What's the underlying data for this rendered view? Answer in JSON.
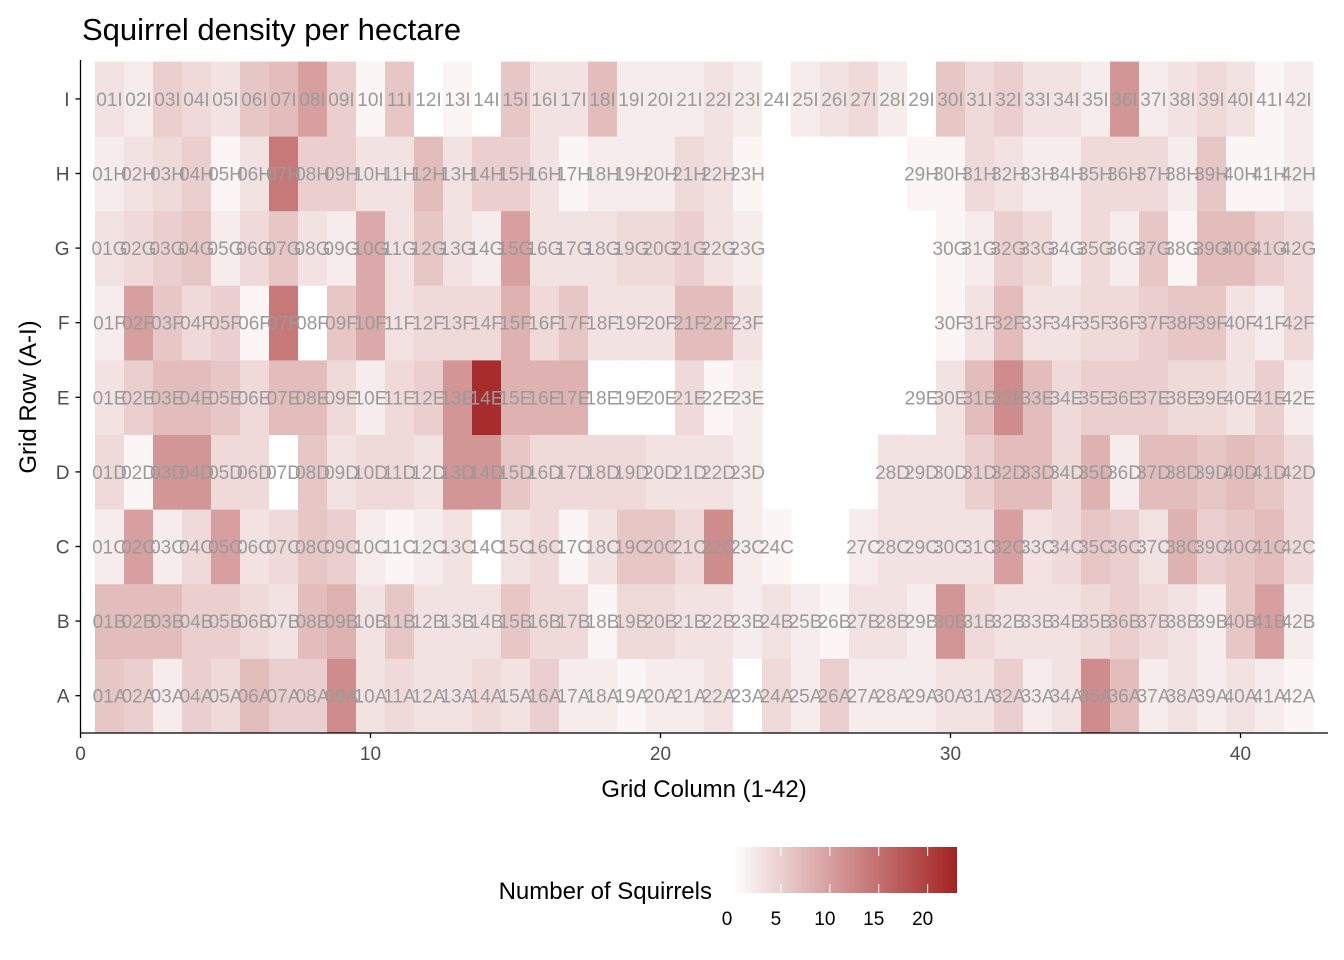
{
  "chart_data": {
    "type": "heatmap",
    "title": "Squirrel density per hectare",
    "xlabel": "Grid Column (1-42)",
    "ylabel": "Grid Row (A-I)",
    "x_ticks": [
      0,
      10,
      20,
      30,
      40
    ],
    "xlim": [
      0,
      42.5
    ],
    "rows": [
      "A",
      "B",
      "C",
      "D",
      "E",
      "F",
      "G",
      "H",
      "I"
    ],
    "columns": [
      1,
      2,
      3,
      4,
      5,
      6,
      7,
      8,
      9,
      10,
      11,
      12,
      13,
      14,
      15,
      16,
      17,
      18,
      19,
      20,
      21,
      22,
      23,
      24,
      25,
      26,
      27,
      28,
      29,
      30,
      31,
      32,
      33,
      34,
      35,
      36,
      37,
      38,
      39,
      40,
      41,
      42
    ],
    "values": {
      "A": [
        6,
        5,
        2,
        5,
        4,
        7,
        5,
        5,
        12,
        3,
        4,
        3,
        3,
        4,
        3,
        5,
        2,
        2,
        1,
        2,
        2,
        3,
        0,
        4,
        2,
        5,
        2,
        2,
        2,
        3,
        3,
        5,
        2,
        3,
        12,
        7,
        2,
        3,
        2,
        3,
        2,
        1
      ],
      "B": [
        7,
        7,
        7,
        5,
        5,
        4,
        3,
        7,
        8,
        3,
        6,
        3,
        3,
        3,
        6,
        4,
        4,
        1,
        4,
        4,
        3,
        3,
        2,
        3,
        2,
        1,
        3,
        3,
        2,
        11,
        4,
        3,
        3,
        3,
        4,
        5,
        4,
        3,
        2,
        6,
        10,
        2
      ],
      "C": [
        2,
        10,
        2,
        4,
        10,
        3,
        4,
        6,
        5,
        2,
        1,
        2,
        3,
        0,
        3,
        4,
        1,
        3,
        6,
        6,
        4,
        12,
        2,
        1,
        null,
        null,
        2,
        3,
        3,
        3,
        3,
        10,
        3,
        4,
        6,
        5,
        3,
        8,
        5,
        6,
        7,
        4
      ],
      "D": [
        4,
        1,
        11,
        11,
        4,
        4,
        0,
        6,
        3,
        4,
        4,
        3,
        11,
        11,
        6,
        4,
        4,
        4,
        4,
        3,
        3,
        3,
        2,
        null,
        null,
        null,
        null,
        3,
        3,
        3,
        5,
        7,
        7,
        4,
        8,
        2,
        7,
        7,
        6,
        7,
        6,
        4
      ],
      "E": [
        3,
        5,
        7,
        7,
        6,
        4,
        7,
        7,
        4,
        2,
        4,
        5,
        11,
        22,
        8,
        8,
        8,
        0,
        0,
        0,
        4,
        1,
        2,
        null,
        null,
        null,
        null,
        null,
        0,
        3,
        7,
        12,
        7,
        4,
        5,
        5,
        5,
        4,
        4,
        3,
        5,
        2
      ],
      "F": [
        2,
        10,
        6,
        4,
        5,
        1,
        14,
        0,
        6,
        9,
        3,
        4,
        4,
        4,
        8,
        4,
        6,
        3,
        3,
        3,
        7,
        7,
        3,
        null,
        null,
        null,
        null,
        null,
        null,
        1,
        3,
        7,
        3,
        3,
        4,
        4,
        5,
        6,
        6,
        3,
        2,
        4
      ],
      "G": [
        3,
        4,
        5,
        6,
        2,
        4,
        6,
        3,
        2,
        9,
        3,
        6,
        3,
        2,
        10,
        3,
        3,
        3,
        4,
        4,
        5,
        3,
        2,
        null,
        null,
        null,
        null,
        null,
        null,
        1,
        2,
        5,
        4,
        2,
        4,
        2,
        6,
        1,
        7,
        7,
        5,
        4
      ],
      "H": [
        2,
        3,
        4,
        5,
        1,
        3,
        14,
        5,
        5,
        3,
        3,
        7,
        3,
        5,
        5,
        3,
        1,
        2,
        2,
        2,
        4,
        3,
        1,
        null,
        null,
        null,
        null,
        null,
        1,
        1,
        4,
        3,
        2,
        2,
        4,
        4,
        4,
        2,
        6,
        1,
        1,
        2
      ],
      "I": [
        3,
        2,
        5,
        4,
        3,
        6,
        7,
        10,
        5,
        1,
        6,
        0,
        1,
        0,
        6,
        3,
        3,
        7,
        2,
        2,
        2,
        3,
        2,
        0,
        2,
        3,
        4,
        2,
        0,
        6,
        4,
        5,
        3,
        3,
        2,
        11,
        2,
        3,
        4,
        3,
        1,
        2
      ]
    },
    "labels": {
      "A": [
        "01A",
        "02A",
        "03A",
        "04A",
        "05A",
        "06A",
        "07A",
        "08A",
        "09A",
        "10A",
        "11A",
        "12A",
        "13A",
        "14A",
        "15A",
        "16A",
        "17A",
        "18A",
        "19A",
        "20A",
        "21A",
        "22A",
        "23A",
        "24A",
        "25A",
        "26A",
        "27A",
        "28A",
        "29A",
        "30A",
        "31A",
        "32A",
        "33A",
        "34A",
        "35A",
        "36A",
        "37A",
        "38A",
        "39A",
        "40A",
        "41A",
        "42A"
      ],
      "B": [
        "01B",
        "02B",
        "03B",
        "04B",
        "05B",
        "06B",
        "07B",
        "08B",
        "09B",
        "10B",
        "11B",
        "12B",
        "13B",
        "14B",
        "15B",
        "16B",
        "17B",
        "18B",
        "19B",
        "20B",
        "21B",
        "22B",
        "23B",
        "24B",
        "25B",
        "26B",
        "27B",
        "28B",
        "29B",
        "30B",
        "31B",
        "32B",
        "33B",
        "34B",
        "35B",
        "36B",
        "37B",
        "38B",
        "39B",
        "40B",
        "41B",
        "42B"
      ],
      "C": [
        "01C",
        "02C",
        "03C",
        "04C",
        "05C",
        "06C",
        "07C",
        "08C",
        "09C",
        "10C",
        "11C",
        "12C",
        "13C",
        "14C",
        "15C",
        "16C",
        "17C",
        "18C",
        "19C",
        "20C",
        "21C",
        "22C",
        "23C",
        "24C",
        null,
        null,
        "27C",
        "28C",
        "29C",
        "30C",
        "31C",
        "32C",
        "33C",
        "34C",
        "35C",
        "36C",
        "37C",
        "38C",
        "39C",
        "40C",
        "41C",
        "42C"
      ],
      "D": [
        "01D",
        "02D",
        "03D",
        "04D",
        "05D",
        "06D",
        "07D",
        "08D",
        "09D",
        "10D",
        "11D",
        "12D",
        "13D",
        "14D",
        "15D",
        "16D",
        "17D",
        "18D",
        "19D",
        "20D",
        "21D",
        "22D",
        "23D",
        null,
        null,
        null,
        null,
        "28D",
        "29D",
        "30D",
        "31D",
        "32D",
        "33D",
        "34D",
        "35D",
        "36D",
        "37D",
        "38D",
        "39D",
        "40D",
        "41D",
        "42D"
      ],
      "E": [
        "01E",
        "02E",
        "03E",
        "04E",
        "05E",
        "06E",
        "07E",
        "08E",
        "09E",
        "10E",
        "11E",
        "12E",
        "13E",
        "14E",
        "15E",
        "16E",
        "17E",
        "18E",
        "19E",
        "20E",
        "21E",
        "22E",
        "23E",
        null,
        null,
        null,
        null,
        null,
        "29E",
        "30E",
        "31E",
        "32E",
        "33E",
        "34E",
        "35E",
        "36E",
        "37E",
        "38E",
        "39E",
        "40E",
        "41E",
        "42E"
      ],
      "F": [
        "01F",
        "02F",
        "03F",
        "04F",
        "05F",
        "06F",
        "07F",
        "08F",
        "09F",
        "10F",
        "11F",
        "12F",
        "13F",
        "14F",
        "15F",
        "16F",
        "17F",
        "18F",
        "19F",
        "20F",
        "21F",
        "22F",
        "23F",
        null,
        null,
        null,
        null,
        null,
        null,
        "30F",
        "31F",
        "32F",
        "33F",
        "34F",
        "35F",
        "36F",
        "37F",
        "38F",
        "39F",
        "40F",
        "41F",
        "42F"
      ],
      "G": [
        "01G",
        "02G",
        "03G",
        "04G",
        "05G",
        "06G",
        "07G",
        "08G",
        "09G",
        "10G",
        "11G",
        "12G",
        "13G",
        "14G",
        "15G",
        "16G",
        "17G",
        "18G",
        "19G",
        "20G",
        "21G",
        "22G",
        "23G",
        null,
        null,
        null,
        null,
        null,
        null,
        "30G",
        "31G",
        "32G",
        "33G",
        "34G",
        "35G",
        "36G",
        "37G",
        "38G",
        "39G",
        "40G",
        "41G",
        "42G"
      ],
      "H": [
        "01H",
        "02H",
        "03H",
        "04H",
        "05H",
        "06H",
        "07H",
        "08H",
        "09H",
        "10H",
        "11H",
        "12H",
        "13H",
        "14H",
        "15H",
        "16H",
        "17H",
        "18H",
        "19H",
        "20H",
        "21H",
        "22H",
        "23H",
        null,
        null,
        null,
        null,
        null,
        "29H",
        "30H",
        "31H",
        "32H",
        "33H",
        "34H",
        "35H",
        "36H",
        "37H",
        "38H",
        "39H",
        "40H",
        "41H",
        "42H"
      ],
      "I": [
        "01I",
        "02I",
        "03I",
        "04I",
        "05I",
        "06I",
        "07I",
        "08I",
        "09I",
        "10I",
        "11I",
        "12I",
        "13I",
        "14I",
        "15I",
        "16I",
        "17I",
        "18I",
        "19I",
        "20I",
        "21I",
        "22I",
        "23I",
        "24I",
        "25I",
        "26I",
        "27I",
        "28I",
        "29I",
        "30I",
        "31I",
        "32I",
        "33I",
        "34I",
        "35I",
        "36I",
        "37I",
        "38I",
        "39I",
        "40I",
        "41I",
        "42I"
      ]
    },
    "legend": {
      "title": "Number of Squirrels",
      "ticks": [
        0,
        5,
        10,
        15,
        20
      ],
      "range": [
        0,
        23
      ],
      "color_low": "#ffffff",
      "color_high": "#a32323",
      "placement": "bottom"
    },
    "grid": false
  }
}
